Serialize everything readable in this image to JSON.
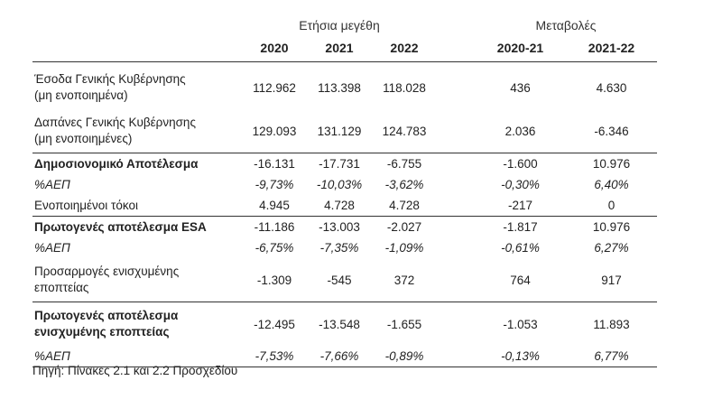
{
  "header": {
    "group1": "Ετήσια μεγέθη",
    "group2": "Μεταβολές",
    "columns": [
      "2020",
      "2021",
      "2022",
      "2020-21",
      "2021-22"
    ]
  },
  "rows": [
    {
      "label_line1": "Έσοδα Γενικής Κυβέρνησης",
      "label_line2": "(μη ενοποιημένα)",
      "values": [
        "112.962",
        "113.398",
        "118.028",
        "436",
        "4.630"
      ]
    },
    {
      "label_line1": "Δαπάνες Γενικής Κυβέρνησης",
      "label_line2": "(μη ενοποιημένες)",
      "values": [
        "129.093",
        "131.129",
        "124.783",
        "2.036",
        "-6.346"
      ]
    },
    {
      "label": "Δημοσιονομικό Αποτέλεσμα",
      "values": [
        "-16.131",
        "-17.731",
        "-6.755",
        "-1.600",
        "10.976"
      ]
    },
    {
      "label": "%ΑΕΠ",
      "values": [
        "-9,73%",
        "-10,03%",
        "-3,62%",
        "-0,30%",
        "6,40%"
      ]
    },
    {
      "label": "Ενοποιημένοι τόκοι",
      "values": [
        "4.945",
        "4.728",
        "4.728",
        "-217",
        "0"
      ]
    },
    {
      "label": "Πρωτογενές αποτέλεσμα ESA",
      "values": [
        "-11.186",
        "-13.003",
        "-2.027",
        "-1.817",
        "10.976"
      ]
    },
    {
      "label": "%ΑΕΠ",
      "values": [
        "-6,75%",
        "-7,35%",
        "-1,09%",
        "-0,61%",
        "6,27%"
      ]
    },
    {
      "label_line1": "Προσαρμογές ενισχυμένης",
      "label_line2": "εποπτείας",
      "values": [
        "-1.309",
        "-545",
        "372",
        "764",
        "917"
      ]
    },
    {
      "label_line1": "Πρωτογενές αποτέλεσμα",
      "label_line2": "ενισχυμένης εποπτείας",
      "values": [
        "-12.495",
        "-13.548",
        "-1.655",
        "-1.053",
        "11.893"
      ]
    },
    {
      "label": "%ΑΕΠ",
      "values": [
        "-7,53%",
        "-7,66%",
        "-0,89%",
        "-0,13%",
        "6,77%"
      ]
    }
  ],
  "source": "Πηγή: Πίνακες 2.1 και 2.2 Προσχεδίου"
}
